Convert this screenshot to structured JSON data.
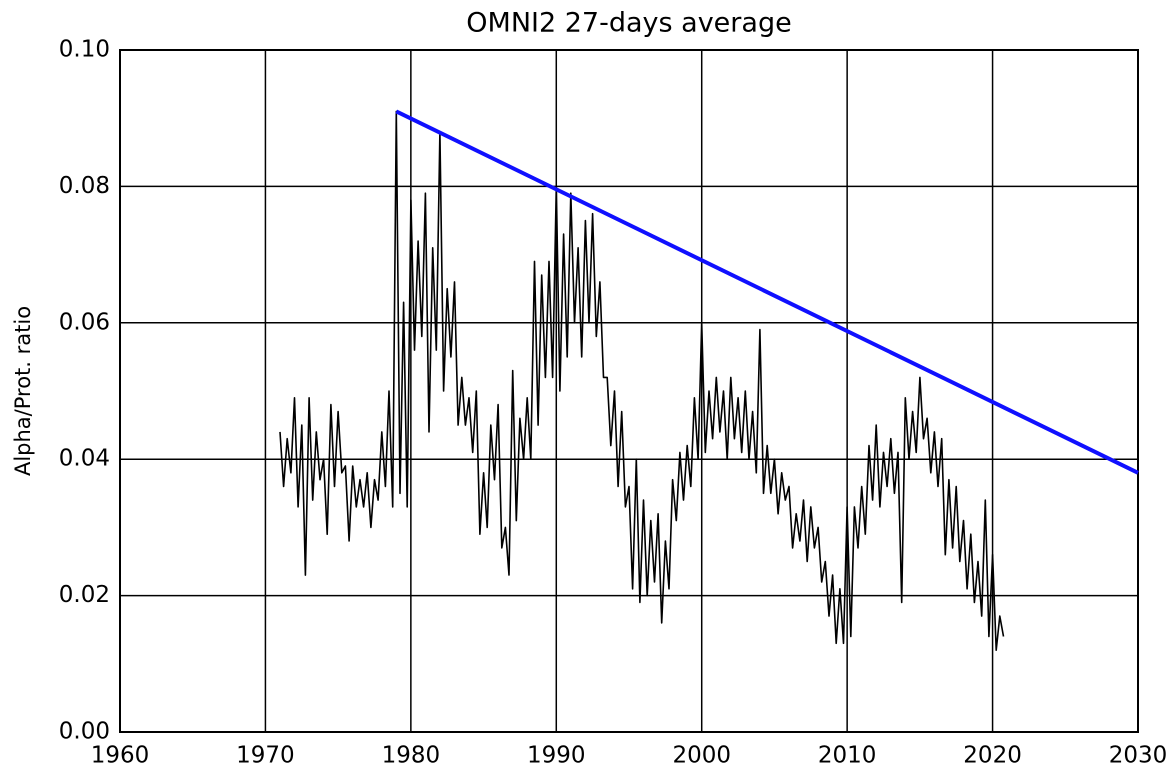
{
  "chart_data": {
    "type": "line",
    "title": "OMNI2 27-days average",
    "y_label": "Alpha/Prot. ratio",
    "xlim": [
      1960,
      2030
    ],
    "xticks": [
      1960,
      1970,
      1980,
      1990,
      2000,
      2010,
      2020,
      2030
    ],
    "ylim": [
      0,
      0.1
    ],
    "yticks": [
      {
        "value": 0,
        "label": "0.00"
      },
      0.02,
      0.04,
      0.06,
      0.08,
      {
        "value": 0.1,
        "label": "0.10"
      }
    ],
    "grid": true,
    "series": [
      {
        "color": "#000000",
        "x": [
          1971,
          1971.25,
          1971.5,
          1971.75,
          1972,
          1972.25,
          1972.5,
          1972.75,
          1973,
          1973.25,
          1973.5,
          1973.75,
          1974,
          1974.25,
          1974.5,
          1974.75,
          1975,
          1975.25,
          1975.5,
          1975.75,
          1976,
          1976.25,
          1976.5,
          1976.75,
          1977,
          1977.25,
          1977.5,
          1977.75,
          1978,
          1978.25,
          1978.5,
          1978.75,
          1979,
          1979.25,
          1979.5,
          1979.75,
          1980,
          1980.25,
          1980.5,
          1980.75,
          1981,
          1981.25,
          1981.5,
          1981.75,
          1982,
          1982.25,
          1982.5,
          1982.75,
          1983,
          1983.25,
          1983.5,
          1983.75,
          1984,
          1984.25,
          1984.5,
          1984.75,
          1985,
          1985.25,
          1985.5,
          1985.75,
          1986,
          1986.25,
          1986.5,
          1986.75,
          1987,
          1987.25,
          1987.5,
          1987.75,
          1988,
          1988.25,
          1988.5,
          1988.75,
          1989,
          1989.25,
          1989.5,
          1989.75,
          1990,
          1990.25,
          1990.5,
          1990.75,
          1991,
          1991.25,
          1991.5,
          1991.75,
          1992,
          1992.25,
          1992.5,
          1992.75,
          1993,
          1993.25,
          1993.5,
          1993.75,
          1994,
          1994.25,
          1994.5,
          1994.75,
          1995,
          1995.25,
          1995.5,
          1995.75,
          1996,
          1996.25,
          1996.5,
          1996.75,
          1997,
          1997.25,
          1997.5,
          1997.75,
          1998,
          1998.25,
          1998.5,
          1998.75,
          1999,
          1999.25,
          1999.5,
          1999.75,
          2000,
          2000.25,
          2000.5,
          2000.75,
          2001,
          2001.25,
          2001.5,
          2001.75,
          2002,
          2002.25,
          2002.5,
          2002.75,
          2003,
          2003.25,
          2003.5,
          2003.75,
          2004,
          2004.25,
          2004.5,
          2004.75,
          2005,
          2005.25,
          2005.5,
          2005.75,
          2006,
          2006.25,
          2006.5,
          2006.75,
          2007,
          2007.25,
          2007.5,
          2007.75,
          2008,
          2008.25,
          2008.5,
          2008.75,
          2009,
          2009.25,
          2009.5,
          2009.75,
          2010,
          2010.25,
          2010.5,
          2010.75,
          2011,
          2011.25,
          2011.5,
          2011.75,
          2012,
          2012.25,
          2012.5,
          2012.75,
          2013,
          2013.25,
          2013.5,
          2013.75,
          2014,
          2014.25,
          2014.5,
          2014.75,
          2015,
          2015.25,
          2015.5,
          2015.75,
          2016,
          2016.25,
          2016.5,
          2016.75,
          2017,
          2017.25,
          2017.5,
          2017.75,
          2018,
          2018.25,
          2018.5,
          2018.75,
          2019,
          2019.25,
          2019.5,
          2019.75,
          2020,
          2020.25,
          2020.5,
          2020.75
        ],
        "values": [
          0.044,
          0.036,
          0.043,
          0.038,
          0.049,
          0.033,
          0.045,
          0.023,
          0.049,
          0.034,
          0.044,
          0.037,
          0.04,
          0.029,
          0.048,
          0.036,
          0.047,
          0.038,
          0.039,
          0.028,
          0.039,
          0.033,
          0.037,
          0.033,
          0.038,
          0.03,
          0.037,
          0.034,
          0.044,
          0.036,
          0.05,
          0.033,
          0.091,
          0.035,
          0.063,
          0.033,
          0.078,
          0.056,
          0.072,
          0.058,
          0.079,
          0.044,
          0.071,
          0.056,
          0.088,
          0.05,
          0.065,
          0.055,
          0.066,
          0.045,
          0.052,
          0.045,
          0.049,
          0.041,
          0.05,
          0.029,
          0.038,
          0.03,
          0.045,
          0.037,
          0.048,
          0.027,
          0.03,
          0.023,
          0.053,
          0.031,
          0.046,
          0.04,
          0.049,
          0.04,
          0.069,
          0.045,
          0.067,
          0.052,
          0.069,
          0.052,
          0.08,
          0.05,
          0.073,
          0.055,
          0.079,
          0.06,
          0.071,
          0.055,
          0.075,
          0.06,
          0.076,
          0.058,
          0.066,
          0.052,
          0.052,
          0.042,
          0.05,
          0.036,
          0.047,
          0.033,
          0.036,
          0.021,
          0.04,
          0.019,
          0.034,
          0.02,
          0.031,
          0.022,
          0.032,
          0.016,
          0.028,
          0.021,
          0.037,
          0.031,
          0.041,
          0.034,
          0.042,
          0.036,
          0.049,
          0.04,
          0.06,
          0.041,
          0.05,
          0.043,
          0.052,
          0.044,
          0.05,
          0.04,
          0.052,
          0.043,
          0.049,
          0.041,
          0.05,
          0.04,
          0.047,
          0.038,
          0.059,
          0.035,
          0.042,
          0.035,
          0.04,
          0.032,
          0.038,
          0.034,
          0.036,
          0.027,
          0.032,
          0.028,
          0.034,
          0.025,
          0.033,
          0.027,
          0.03,
          0.022,
          0.025,
          0.017,
          0.023,
          0.013,
          0.021,
          0.013,
          0.033,
          0.014,
          0.033,
          0.027,
          0.036,
          0.029,
          0.042,
          0.034,
          0.045,
          0.033,
          0.041,
          0.036,
          0.043,
          0.035,
          0.041,
          0.019,
          0.049,
          0.04,
          0.047,
          0.041,
          0.052,
          0.043,
          0.046,
          0.038,
          0.044,
          0.036,
          0.043,
          0.026,
          0.037,
          0.027,
          0.036,
          0.025,
          0.031,
          0.021,
          0.029,
          0.019,
          0.025,
          0.017,
          0.034,
          0.014,
          0.026,
          0.012,
          0.017,
          0.014
        ]
      },
      {
        "color": "#1010ff",
        "x": [
          1979,
          2030
        ],
        "values": [
          0.091,
          0.038
        ]
      }
    ]
  }
}
